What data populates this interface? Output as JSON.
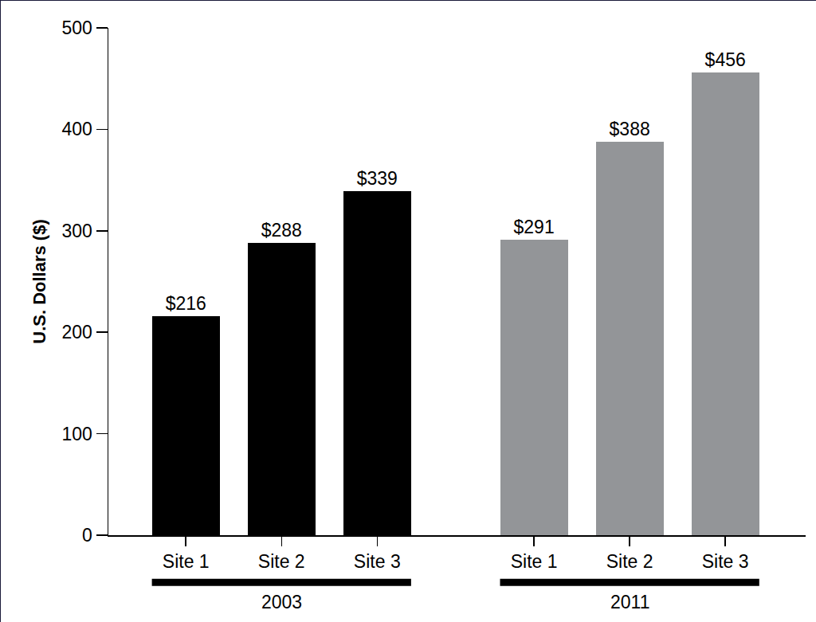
{
  "chart_data": {
    "type": "bar",
    "y_label": "U.S. Dollars ($)",
    "categories": [
      "Site 1",
      "Site 2",
      "Site 3"
    ],
    "series": [
      {
        "name": "2003",
        "color": "#000000",
        "values": [
          216,
          288,
          339
        ],
        "value_labels": [
          "$216",
          "$288",
          "$339"
        ]
      },
      {
        "name": "2011",
        "color": "#939598",
        "values": [
          291,
          388,
          456
        ],
        "value_labels": [
          "$291",
          "$388",
          "$456"
        ]
      }
    ],
    "ylim": [
      0,
      500
    ],
    "yticks": [
      0,
      100,
      200,
      300,
      400,
      500
    ],
    "grid": false,
    "data_labels": true
  }
}
